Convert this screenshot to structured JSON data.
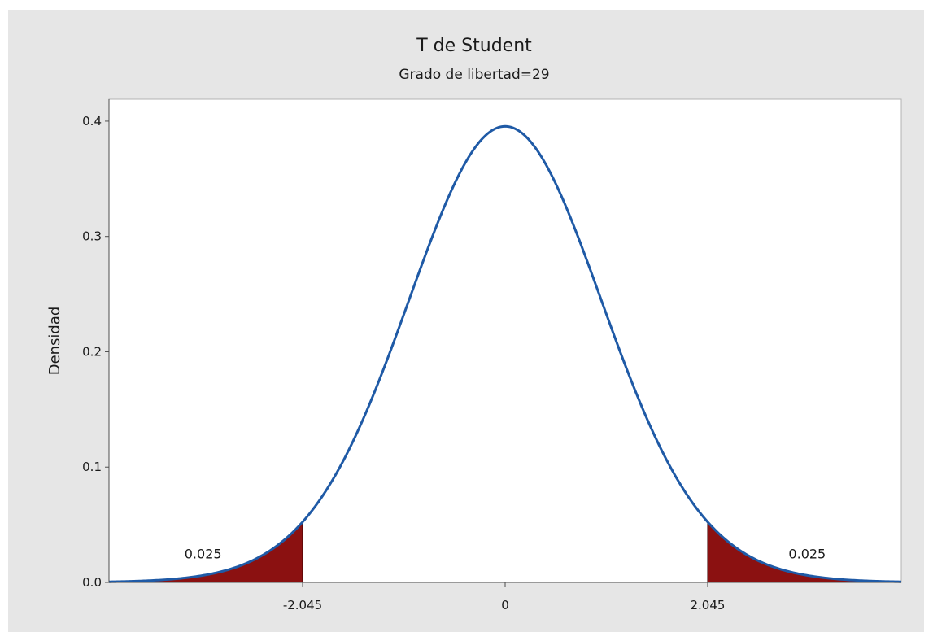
{
  "chart_data": {
    "type": "area",
    "title": "T de Student",
    "subtitle": "Grado de libertad=29",
    "xlabel": "",
    "ylabel": "Densidad",
    "distribution": "t",
    "degrees_of_freedom": 29,
    "xlim": [
      -4.0,
      4.0
    ],
    "ylim": [
      0.0,
      0.42
    ],
    "x_ticks": [
      {
        "value": -2.045,
        "label": "-2.045"
      },
      {
        "value": 0,
        "label": "0"
      },
      {
        "value": 2.045,
        "label": "2.045"
      }
    ],
    "y_ticks": [
      {
        "value": 0.0,
        "label": "0.0"
      },
      {
        "value": 0.1,
        "label": "0.1"
      },
      {
        "value": 0.2,
        "label": "0.2"
      },
      {
        "value": 0.3,
        "label": "0.3"
      },
      {
        "value": 0.4,
        "label": "0.4"
      }
    ],
    "grid": false,
    "shaded_regions": [
      {
        "from": -4.0,
        "to": -2.045,
        "probability": "0.025",
        "label_x": -3.05,
        "label_y": 0.025
      },
      {
        "from": 2.045,
        "to": 4.0,
        "probability": "0.025",
        "label_x": 3.05,
        "label_y": 0.025
      }
    ],
    "colors": {
      "curve": "#1f5aa6",
      "shade": "#8b1111",
      "background": "#e6e6e6",
      "plot_area": "#ffffff"
    }
  }
}
